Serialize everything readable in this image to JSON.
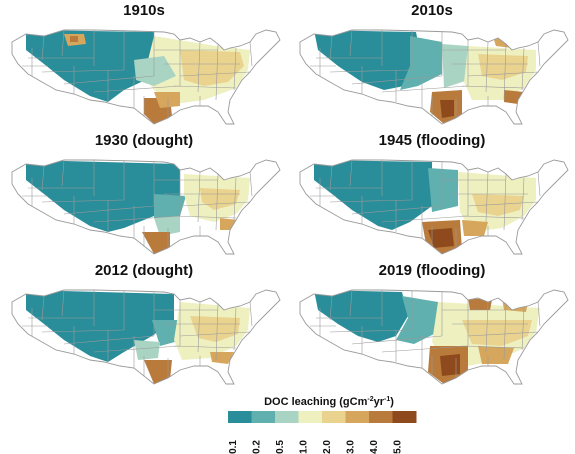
{
  "panels": [
    {
      "title": "1910s",
      "pattern": "base"
    },
    {
      "title": "2010s",
      "pattern": "wet"
    },
    {
      "title": "1930 (dought)",
      "pattern": "dry"
    },
    {
      "title": "1945 (flooding)",
      "pattern": "flood"
    },
    {
      "title": "2012 (dought)",
      "pattern": "dry2"
    },
    {
      "title": "2019 (flooding)",
      "pattern": "flood2"
    }
  ],
  "legend": {
    "title_main": "DOC leaching (gCm",
    "title_sup1": "-2",
    "title_mid": "yr",
    "title_sup2": "-1",
    "title_end": ")",
    "ticks": [
      "0.1",
      "0.2",
      "0.5",
      "1.0",
      "2.0",
      "3.0",
      "4.0",
      "5.0"
    ],
    "colors": [
      "#2a8e9a",
      "#5fb0ae",
      "#a9d4c3",
      "#eef0c0",
      "#e9d38f",
      "#d6a65d",
      "#b97b3c",
      "#8e4a1c"
    ]
  },
  "colors": {
    "state_line": "#9a9a9a",
    "background": "#ffffff"
  }
}
